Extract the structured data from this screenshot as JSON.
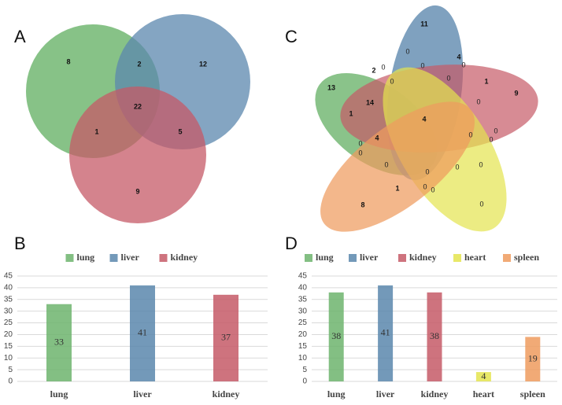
{
  "panels": {
    "a": "A",
    "b": "B",
    "c": "C",
    "d": "D"
  },
  "colors": {
    "lung": "#6db46d",
    "liver": "#5b87ad",
    "kidney": "#c65a67",
    "heart": "#e4e44e",
    "spleen": "#ee9b5e"
  },
  "venn3": {
    "sets": [
      "lung",
      "liver",
      "kidney"
    ],
    "regions": {
      "lung_only": "8",
      "liver_only": "12",
      "kidney_only": "9",
      "lung_liver": "2",
      "lung_kidney": "1",
      "liver_kidney": "5",
      "all": "22"
    }
  },
  "venn5": {
    "sets": [
      "lung",
      "liver",
      "kidney",
      "heart",
      "spleen"
    ],
    "labels": [
      "13",
      "11",
      "9",
      "0",
      "8",
      "2",
      "4",
      "1",
      "14",
      "1",
      "0",
      "0",
      "0",
      "0",
      "4",
      "0",
      "0",
      "0",
      "0",
      "4",
      "0",
      "0",
      "0",
      "0",
      "0",
      "0",
      "0",
      "1",
      "0",
      "0",
      "0"
    ]
  },
  "chart_data": [
    {
      "type": "bar",
      "title": "",
      "categories": [
        "lung",
        "liver",
        "kidney"
      ],
      "values": [
        33,
        41,
        37
      ],
      "legend": [
        "lung",
        "liver",
        "kidney"
      ],
      "legend_position": "top-center",
      "ylim": [
        0,
        45
      ],
      "yticks": [
        0,
        5,
        10,
        15,
        20,
        25,
        30,
        35,
        40,
        45
      ],
      "grid": true,
      "xlabel": "",
      "ylabel": ""
    },
    {
      "type": "bar",
      "title": "",
      "categories": [
        "lung",
        "liver",
        "kidney",
        "heart",
        "spleen"
      ],
      "values": [
        38,
        41,
        38,
        4,
        19
      ],
      "legend": [
        "lung",
        "liver",
        "kidney",
        "heart",
        "spleen"
      ],
      "legend_position": "top-center",
      "ylim": [
        0,
        45
      ],
      "yticks": [
        0,
        5,
        10,
        15,
        20,
        25,
        30,
        35,
        40,
        45
      ],
      "grid": true,
      "xlabel": "",
      "ylabel": ""
    }
  ]
}
